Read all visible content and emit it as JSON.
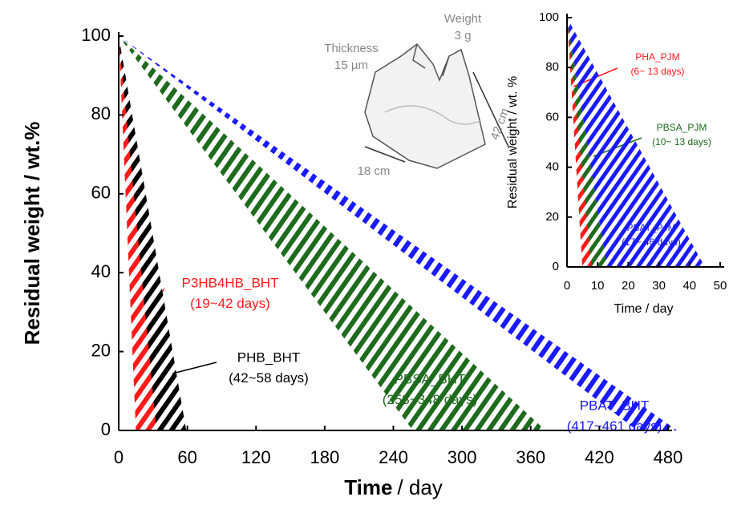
{
  "chart_data": [
    {
      "type": "hatched-area",
      "y_label": "Residual weight / wt.%",
      "x_label": {
        "bold": "Time",
        "rest": "/ day"
      },
      "xlim": [
        0,
        480
      ],
      "xticks": [
        0,
        60,
        120,
        180,
        240,
        300,
        360,
        420,
        480
      ],
      "ylim": [
        0,
        100
      ],
      "yticks": [
        0,
        20,
        40,
        60,
        80,
        100
      ],
      "series": [
        {
          "name": "P3HB4HB_BHT",
          "range_label": "(19~42 days)",
          "color": "#ff1a1a",
          "x": [
            0,
            15,
            40
          ],
          "values": [
            100,
            0,
            0
          ]
        },
        {
          "name": "PHB_BHT",
          "range_label": "(42~58 days)",
          "color": "#000000",
          "x": [
            0,
            33,
            59
          ],
          "values": [
            100,
            0,
            0
          ]
        },
        {
          "name": "PBSA_BHT",
          "range_label": "(253~348 days)",
          "color": "#1e6b1e",
          "x": [
            0,
            257,
            373
          ],
          "values": [
            100,
            0,
            0
          ]
        },
        {
          "name": "PBAT_BHT",
          "range_label": "(417~461 days)",
          "color": "#1a1aff",
          "x": [
            0,
            453,
            488
          ],
          "values": [
            100,
            0,
            0
          ]
        }
      ],
      "annotations": {
        "weight": "Weight",
        "weight_value": "3 g",
        "thickness": "Thickness",
        "thickness_value": "15 µm",
        "length": "42 cm",
        "width": "18 cm"
      }
    },
    {
      "type": "hatched-area",
      "y_label": "Residual weight / wt. %",
      "x_label": {
        "bold": "",
        "rest": "Time / day"
      },
      "xlim": [
        0,
        50
      ],
      "xticks": [
        0,
        10,
        20,
        30,
        40,
        50
      ],
      "ylim": [
        0,
        100
      ],
      "yticks": [
        0,
        20,
        40,
        60,
        80,
        100
      ],
      "series": [
        {
          "name": "PHA_PJM",
          "range_label": "(6~ 13 days)",
          "color": "#ff1a1a",
          "x": [
            0,
            5,
            10
          ],
          "values": [
            100,
            0,
            0
          ]
        },
        {
          "name": "PBSA_PJM",
          "range_label": "(10~ 13 days)",
          "color": "#1e6b1e",
          "x": [
            0,
            8,
            13
          ],
          "values": [
            100,
            0,
            0
          ]
        },
        {
          "name": "PBAT_PJM",
          "range_label": "(17~ 46 days)",
          "color": "#1a1aff",
          "x": [
            0,
            13,
            45
          ],
          "values": [
            100,
            0,
            0
          ]
        }
      ]
    }
  ]
}
